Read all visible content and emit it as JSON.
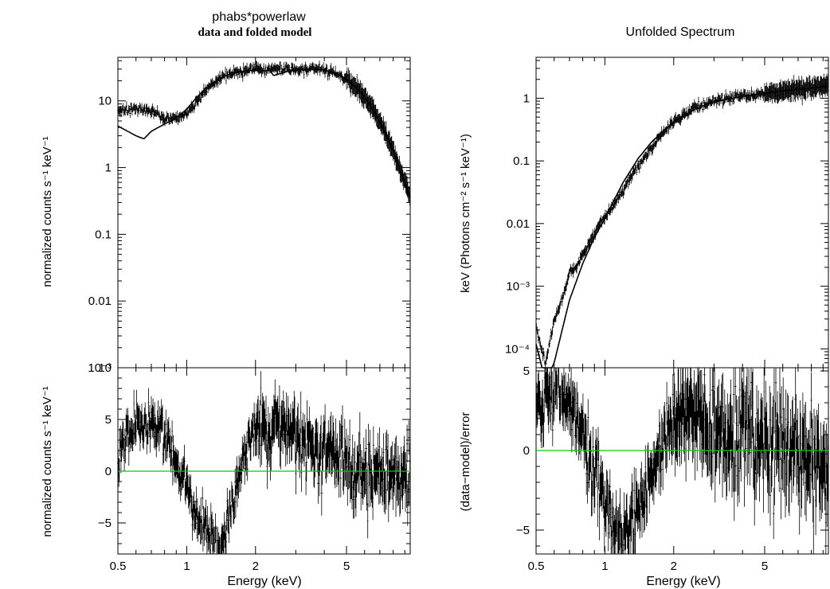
{
  "colors": {
    "data": "#000000",
    "model": "#000000",
    "zero_line": "#00cc00",
    "frame": "#000000"
  },
  "chart_data": [
    {
      "type": "scatter",
      "title": "phabs*powerlaw",
      "subtitle": "data and folded model",
      "xlabel": "Energy (keV)",
      "xscale": "log",
      "xlim": [
        0.5,
        9.5
      ],
      "x_ticks": [
        0.5,
        1,
        2,
        5
      ],
      "x_tick_labels": [
        "0.5",
        "1",
        "2",
        "5"
      ],
      "top": {
        "ylabel": "normalized counts s⁻¹ keV⁻¹",
        "yscale": "log",
        "ylim": [
          0.001,
          45
        ],
        "y_ticks": [
          0.001,
          0.01,
          0.1,
          1,
          10
        ],
        "y_tick_labels": [
          "10⁻³",
          "0.01",
          "0.1",
          "1",
          "10"
        ],
        "data_anchors": {
          "x": [
            0.5,
            0.6,
            0.7,
            0.8,
            0.9,
            1.0,
            1.1,
            1.2,
            1.4,
            1.6,
            1.8,
            2.0,
            2.2,
            2.4,
            2.7,
            3.0,
            3.5,
            4.0,
            4.5,
            5.0,
            5.5,
            6.0,
            6.5,
            7.0,
            7.5,
            8.0,
            8.5,
            9.0,
            9.5
          ],
          "y": [
            7.0,
            7.5,
            7.0,
            5.2,
            5.5,
            6.5,
            9.5,
            14,
            22,
            26,
            28,
            30,
            29,
            30,
            30,
            30,
            30,
            29,
            26,
            21,
            16,
            11.5,
            7.5,
            4.8,
            3.0,
            1.8,
            1.0,
            0.6,
            0.35
          ]
        },
        "model": {
          "x": [
            0.5,
            0.6,
            0.65,
            0.7,
            0.8,
            0.9,
            1.0,
            1.1,
            1.2,
            1.4,
            1.6,
            1.8,
            2.0,
            2.2,
            2.3,
            2.4,
            2.6,
            2.8,
            3.0,
            3.5,
            4.0,
            4.5,
            5.0,
            5.5,
            6.0,
            6.5,
            7.0,
            7.5,
            8.0,
            8.5,
            9.0,
            9.5
          ],
          "y": [
            4.2,
            3.0,
            2.7,
            3.5,
            4.5,
            5.5,
            7.5,
            11,
            15,
            22,
            26,
            28,
            29,
            28,
            29,
            24,
            26,
            28,
            29,
            30,
            29,
            26,
            21,
            16,
            11.5,
            7.5,
            4.8,
            3.0,
            1.8,
            1.0,
            0.6,
            0.35
          ]
        }
      },
      "bottom": {
        "ylabel": "normalized counts s⁻¹ keV⁻¹",
        "yscale": "linear",
        "ylim": [
          -8,
          10
        ],
        "y_ticks": [
          -5,
          0,
          5,
          10
        ],
        "y_tick_labels": [
          "−5",
          "0",
          "5",
          "10"
        ],
        "zero_line": 0,
        "residual_anchors": {
          "x": [
            0.5,
            0.55,
            0.6,
            0.65,
            0.7,
            0.75,
            0.8,
            0.9,
            1.0,
            1.1,
            1.2,
            1.3,
            1.4,
            1.5,
            1.6,
            1.7,
            1.8,
            2.0,
            2.2,
            2.4,
            2.6,
            3.0,
            3.5,
            4.0,
            5.0,
            6.0,
            7.0,
            8.0,
            9.5
          ],
          "y": [
            1.5,
            3.5,
            4.5,
            4.5,
            5.0,
            3.5,
            3.0,
            1.0,
            -1.5,
            -4.0,
            -5.5,
            -6.5,
            -7.0,
            -5.5,
            -3.0,
            -0.5,
            1.5,
            4.0,
            4.5,
            4.0,
            4.5,
            3.5,
            2.5,
            2.0,
            1.0,
            0.5,
            0.0,
            -0.3,
            0.0
          ]
        }
      }
    },
    {
      "type": "scatter",
      "title": "Unfolded Spectrum",
      "xlabel": "Energy (keV)",
      "xscale": "log",
      "xlim": [
        0.5,
        9.5
      ],
      "x_ticks": [
        0.5,
        1,
        2,
        5
      ],
      "x_tick_labels": [
        "0.5",
        "1",
        "2",
        "5"
      ],
      "top": {
        "ylabel": "keV (Photons cm⁻² s⁻¹ keV⁻¹)",
        "yscale": "log",
        "ylim": [
          5e-05,
          4.5
        ],
        "y_ticks": [
          0.0001,
          0.001,
          0.01,
          0.1,
          1
        ],
        "y_tick_labels": [
          "10⁻⁴",
          "10⁻³",
          "0.01",
          "0.1",
          "1"
        ],
        "data_anchors": {
          "x": [
            0.5,
            0.55,
            0.6,
            0.65,
            0.7,
            0.75,
            0.8,
            0.9,
            1.0,
            1.1,
            1.2,
            1.4,
            1.6,
            1.8,
            2.0,
            2.5,
            3.0,
            4.0,
            5.0,
            6.0,
            7.0,
            8.0,
            9.5
          ],
          "y": [
            0.00022,
            6e-05,
            0.00028,
            0.0006,
            0.0016,
            0.002,
            0.0032,
            0.007,
            0.013,
            0.02,
            0.035,
            0.08,
            0.16,
            0.28,
            0.42,
            0.7,
            0.9,
            1.1,
            1.2,
            1.3,
            1.4,
            1.5,
            1.6
          ]
        },
        "model": {
          "x": [
            0.5,
            0.55,
            0.6,
            0.65,
            0.7,
            0.75,
            0.8,
            0.9,
            1.0,
            1.1,
            1.2,
            1.4,
            1.6,
            1.8,
            2.0,
            2.5,
            3.0,
            4.0,
            5.0,
            6.0,
            7.0,
            8.0,
            9.5
          ],
          "y": [
            0.00012,
            3e-05,
            6e-05,
            0.0002,
            0.0006,
            0.0012,
            0.0023,
            0.006,
            0.012,
            0.024,
            0.045,
            0.11,
            0.2,
            0.3,
            0.42,
            0.68,
            0.88,
            1.07,
            1.2,
            1.3,
            1.38,
            1.45,
            1.55
          ]
        }
      },
      "bottom": {
        "ylabel": "(data−model)/error",
        "yscale": "linear",
        "ylim": [
          -6.5,
          5.2
        ],
        "y_ticks": [
          -5,
          0,
          5
        ],
        "y_tick_labels": [
          "−5",
          "0",
          "5"
        ],
        "zero_line": 0,
        "residual_anchors": {
          "x": [
            0.5,
            0.55,
            0.6,
            0.65,
            0.7,
            0.75,
            0.8,
            0.9,
            1.0,
            1.1,
            1.2,
            1.3,
            1.4,
            1.6,
            1.8,
            2.0,
            2.2,
            2.5,
            3.0,
            3.5,
            4.0,
            5.0,
            6.0,
            7.0,
            8.0,
            9.5
          ],
          "y": [
            3.0,
            3.0,
            4.0,
            4.0,
            3.5,
            2.0,
            1.0,
            -1.5,
            -3.0,
            -5.0,
            -5.5,
            -4.5,
            -3.5,
            -1.5,
            0.5,
            2.0,
            2.5,
            2.0,
            1.5,
            1.0,
            0.5,
            0.5,
            0.3,
            -0.5,
            -1.0,
            -0.5
          ]
        }
      }
    }
  ]
}
